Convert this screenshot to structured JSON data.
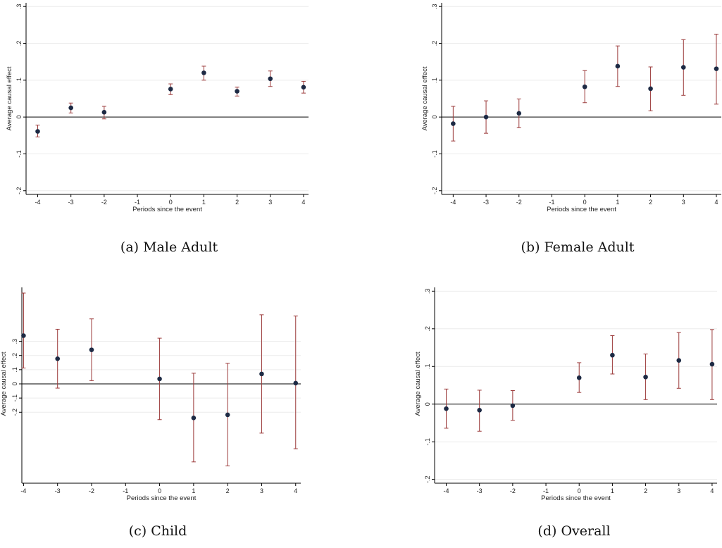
{
  "chart_data": [
    {
      "type": "scatter",
      "subtitle": "(a) Male Adult",
      "xlabel": "Periods since the event",
      "ylabel": "Average causal effect",
      "xticks": [
        "-4",
        "-3",
        "-2",
        "-1",
        "0",
        "1",
        "2",
        "3",
        "4"
      ],
      "yticks": [
        {
          "v": -0.2,
          "label": "-.2"
        },
        {
          "v": -0.1,
          "label": "-.1"
        },
        {
          "v": 0,
          "label": "0"
        },
        {
          "v": 0.1,
          "label": ".1"
        },
        {
          "v": 0.2,
          "label": ".2"
        },
        {
          "v": 0.3,
          "label": ".3"
        }
      ],
      "ylim": [
        -0.21,
        0.31
      ],
      "xlim": [
        -4.35,
        4.15
      ],
      "grid": true,
      "points": [
        {
          "x": -4,
          "y": -0.039,
          "lo": -0.054,
          "hi": -0.022
        },
        {
          "x": -3,
          "y": 0.025,
          "lo": 0.011,
          "hi": 0.038
        },
        {
          "x": -2,
          "y": 0.013,
          "lo": -0.005,
          "hi": 0.029
        },
        {
          "x": 0,
          "y": 0.076,
          "lo": 0.061,
          "hi": 0.09
        },
        {
          "x": 1,
          "y": 0.12,
          "lo": 0.1,
          "hi": 0.138
        },
        {
          "x": 2,
          "y": 0.07,
          "lo": 0.057,
          "hi": 0.081
        },
        {
          "x": 3,
          "y": 0.104,
          "lo": 0.083,
          "hi": 0.125
        },
        {
          "x": 4,
          "y": 0.081,
          "lo": 0.065,
          "hi": 0.097
        }
      ]
    },
    {
      "type": "scatter",
      "subtitle": "(b) Female Adult",
      "xlabel": "Periods since the event",
      "ylabel": "Average causal effect",
      "xticks": [
        "-4",
        "-3",
        "-2",
        "-1",
        "0",
        "1",
        "2",
        "3",
        "4"
      ],
      "yticks": [
        {
          "v": -0.2,
          "label": "-.2"
        },
        {
          "v": -0.1,
          "label": "-.1"
        },
        {
          "v": 0,
          "label": "0"
        },
        {
          "v": 0.1,
          "label": ".1"
        },
        {
          "v": 0.2,
          "label": ".2"
        },
        {
          "v": 0.3,
          "label": ".3"
        }
      ],
      "ylim": [
        -0.21,
        0.31
      ],
      "xlim": [
        -4.35,
        4.15
      ],
      "grid": true,
      "points": [
        {
          "x": -4,
          "y": -0.018,
          "lo": -0.065,
          "hi": 0.029
        },
        {
          "x": -3,
          "y": 0.0,
          "lo": -0.044,
          "hi": 0.044
        },
        {
          "x": -2,
          "y": 0.01,
          "lo": -0.029,
          "hi": 0.049
        },
        {
          "x": 0,
          "y": 0.082,
          "lo": 0.039,
          "hi": 0.126
        },
        {
          "x": 1,
          "y": 0.138,
          "lo": 0.083,
          "hi": 0.193
        },
        {
          "x": 2,
          "y": 0.077,
          "lo": 0.017,
          "hi": 0.136
        },
        {
          "x": 3,
          "y": 0.135,
          "lo": 0.059,
          "hi": 0.21
        },
        {
          "x": 4,
          "y": 0.131,
          "lo": 0.035,
          "hi": 0.225
        }
      ]
    },
    {
      "type": "scatter",
      "subtitle": "(c) Child",
      "xlabel": "Periods since the event",
      "ylabel": "Average causal effect",
      "xticks": [
        "-4",
        "-3",
        "-2",
        "-1",
        "0",
        "1",
        "2",
        "3",
        "4"
      ],
      "yticks": [
        {
          "v": -0.2,
          "label": "-.2"
        },
        {
          "v": -0.1,
          "label": "-.1"
        },
        {
          "v": 0,
          "label": "0"
        },
        {
          "v": 0.1,
          "label": ".1"
        },
        {
          "v": 0.2,
          "label": ".2"
        },
        {
          "v": 0.3,
          "label": ".3"
        }
      ],
      "ylim": [
        -0.7,
        0.68
      ],
      "xlim": [
        -4.05,
        4.15
      ],
      "grid": true,
      "points": [
        {
          "x": -4,
          "y": 0.34,
          "lo": 0.112,
          "hi": 0.64
        },
        {
          "x": -3,
          "y": 0.177,
          "lo": -0.03,
          "hi": 0.385
        },
        {
          "x": -2,
          "y": 0.24,
          "lo": 0.023,
          "hi": 0.458
        },
        {
          "x": 0,
          "y": 0.035,
          "lo": -0.252,
          "hi": 0.322
        },
        {
          "x": 1,
          "y": -0.24,
          "lo": -0.55,
          "hi": 0.075
        },
        {
          "x": 2,
          "y": -0.218,
          "lo": -0.578,
          "hi": 0.145
        },
        {
          "x": 3,
          "y": 0.07,
          "lo": -0.347,
          "hi": 0.487
        },
        {
          "x": 4,
          "y": 0.005,
          "lo": -0.457,
          "hi": 0.478
        }
      ]
    },
    {
      "type": "scatter",
      "subtitle": "(d) Overall",
      "xlabel": "Periods since the event",
      "ylabel": "Average causal effect",
      "xticks": [
        "-4",
        "-3",
        "-2",
        "-1",
        "0",
        "1",
        "2",
        "3",
        "4"
      ],
      "yticks": [
        {
          "v": -0.2,
          "label": "-.2"
        },
        {
          "v": -0.1,
          "label": "-.1"
        },
        {
          "v": 0,
          "label": "0"
        },
        {
          "v": 0.1,
          "label": ".1"
        },
        {
          "v": 0.2,
          "label": ".2"
        },
        {
          "v": 0.3,
          "label": ".3"
        }
      ],
      "ylim": [
        -0.21,
        0.31
      ],
      "xlim": [
        -4.35,
        4.15
      ],
      "grid": true,
      "points": [
        {
          "x": -4,
          "y": -0.012,
          "lo": -0.064,
          "hi": 0.04
        },
        {
          "x": -3,
          "y": -0.016,
          "lo": -0.072,
          "hi": 0.037
        },
        {
          "x": -2,
          "y": -0.004,
          "lo": -0.043,
          "hi": 0.036
        },
        {
          "x": 0,
          "y": 0.07,
          "lo": 0.031,
          "hi": 0.11
        },
        {
          "x": 1,
          "y": 0.13,
          "lo": 0.08,
          "hi": 0.182
        },
        {
          "x": 2,
          "y": 0.072,
          "lo": 0.012,
          "hi": 0.133
        },
        {
          "x": 3,
          "y": 0.116,
          "lo": 0.042,
          "hi": 0.19
        },
        {
          "x": 4,
          "y": 0.106,
          "lo": 0.012,
          "hi": 0.198
        }
      ]
    }
  ]
}
